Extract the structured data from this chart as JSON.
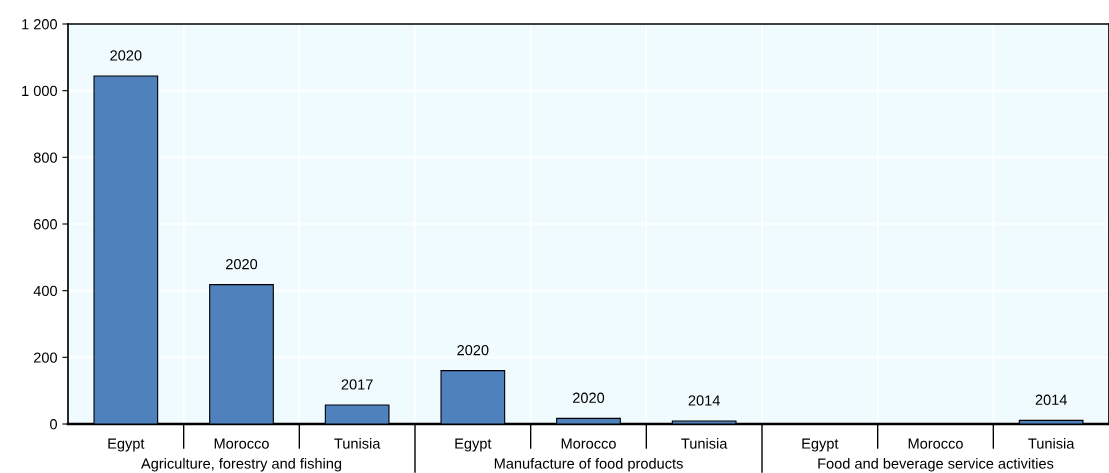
{
  "chart_data": {
    "type": "bar",
    "categories": [
      "Egypt",
      "Morocco",
      "Tunisia",
      "Egypt",
      "Morocco",
      "Tunisia",
      "Egypt",
      "Morocco",
      "Tunisia"
    ],
    "values": [
      1044,
      418,
      57,
      160,
      17,
      9,
      null,
      null,
      11
    ],
    "color": "#4f81bd",
    "ylim": [
      0,
      1200
    ],
    "yticks": [
      0,
      200,
      400,
      600,
      800,
      {
        "value": 1000,
        "label": "1 000"
      },
      {
        "value": 1200,
        "label": "1 200"
      }
    ],
    "grid": true,
    "annotations": [
      "2020",
      "2020",
      "2017",
      "2020",
      "2020",
      "2014",
      "2014",
      "Agriculture, forestry and fishing",
      "Manufacture of food products",
      "Food and beverage service activities"
    ]
  }
}
